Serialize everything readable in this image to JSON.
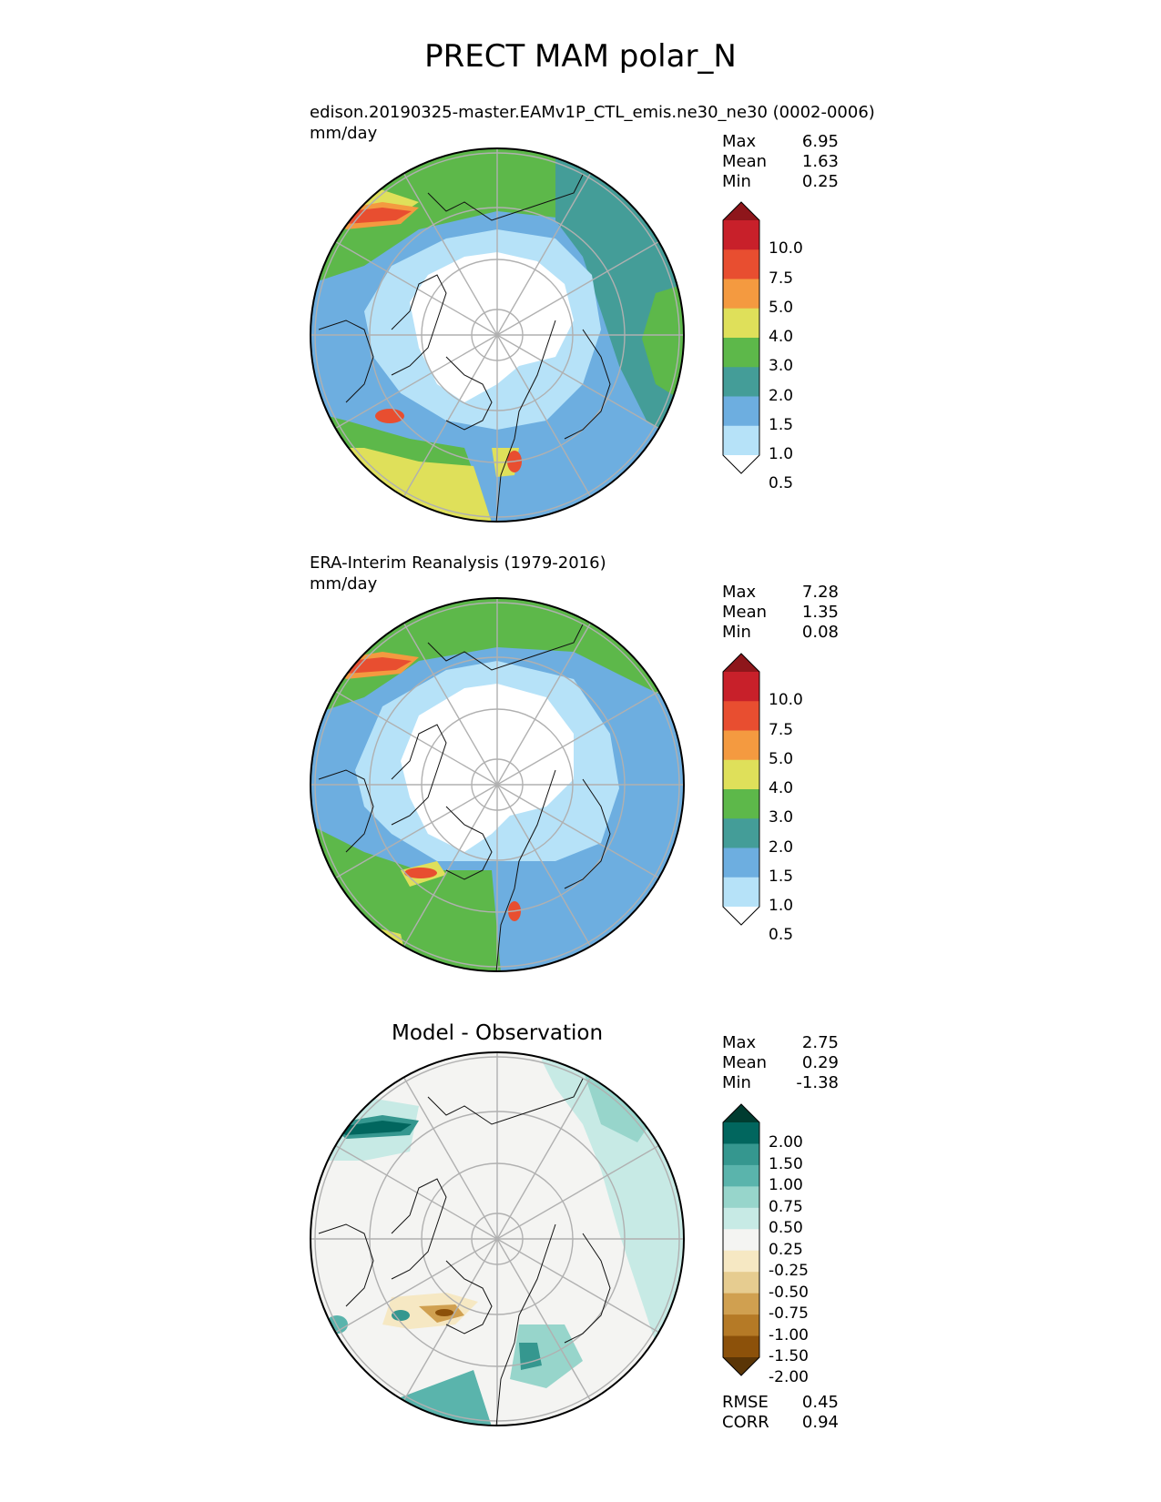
{
  "figure": {
    "title": "PRECT MAM polar_N"
  },
  "panels": [
    {
      "title": "edison.20190325-master.EAMv1P_CTL_emis.ne30_ne30 (0002-0006)",
      "units": "mm/day",
      "stats": [
        {
          "label": "Max",
          "value": "6.95"
        },
        {
          "label": "Mean",
          "value": "1.63"
        },
        {
          "label": "Min",
          "value": "0.25"
        }
      ]
    },
    {
      "title": "ERA-Interim Reanalysis (1979-2016)",
      "units": "mm/day",
      "stats": [
        {
          "label": "Max",
          "value": "7.28"
        },
        {
          "label": "Mean",
          "value": "1.35"
        },
        {
          "label": "Min",
          "value": "0.08"
        }
      ]
    },
    {
      "title": "Model - Observation",
      "stats": [
        {
          "label": "Max",
          "value": "2.75"
        },
        {
          "label": "Mean",
          "value": "0.29"
        },
        {
          "label": "Min",
          "value": "-1.38"
        }
      ],
      "metrics": [
        {
          "label": "RMSE",
          "value": "0.45"
        },
        {
          "label": "CORR",
          "value": "0.94"
        }
      ]
    }
  ],
  "colorbars": {
    "precip": {
      "ticks": [
        "10.0",
        "7.5",
        "5.0",
        "4.0",
        "3.0",
        "2.0",
        "1.5",
        "1.0",
        "0.5"
      ],
      "colors": [
        "#8e161b",
        "#c8202a",
        "#e84e30",
        "#f49a40",
        "#dfe05a",
        "#5db84a",
        "#449d98",
        "#6daee0",
        "#b6e2f8",
        "#ffffff"
      ]
    },
    "diff": {
      "ticks": [
        "2.00",
        "1.50",
        "1.00",
        "0.75",
        "0.50",
        "0.25",
        "-0.25",
        "-0.50",
        "-0.75",
        "-1.00",
        "-1.50",
        "-2.00"
      ],
      "colors": [
        "#003c30",
        "#01665e",
        "#35978f",
        "#5ab4ac",
        "#97d5cb",
        "#c7eae5",
        "#f4f4f2",
        "#f6e8c3",
        "#e6cc90",
        "#d0a050",
        "#b57a26",
        "#8c510a",
        "#5a3506"
      ]
    }
  },
  "chart_data": {
    "type": "heatmap",
    "projection": "north polar stereographic",
    "variable": "PRECT",
    "season": "MAM",
    "region": "polar_N",
    "units": "mm/day",
    "maps": [
      {
        "name": "model",
        "max": 6.95,
        "mean": 1.63,
        "min": 0.25
      },
      {
        "name": "observation",
        "max": 7.28,
        "mean": 1.35,
        "min": 0.08
      },
      {
        "name": "difference",
        "max": 2.75,
        "mean": 0.29,
        "min": -1.38,
        "rmse": 0.45,
        "corr": 0.94
      }
    ]
  }
}
